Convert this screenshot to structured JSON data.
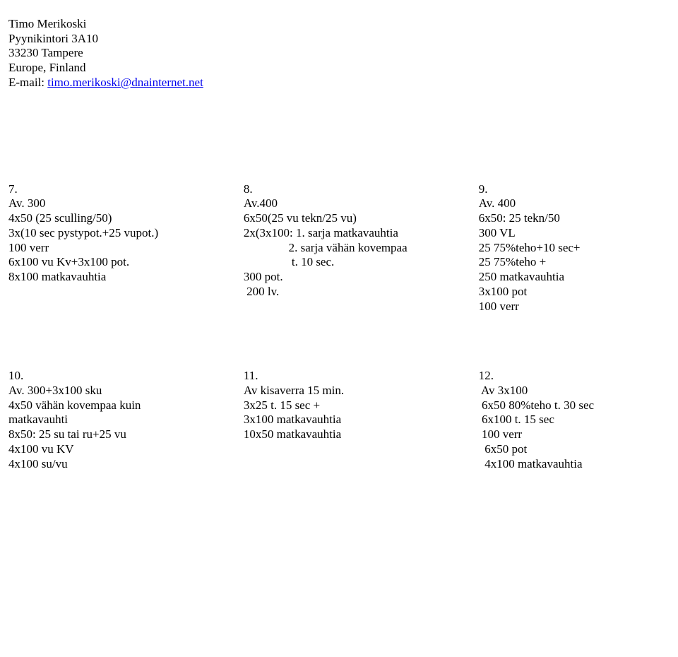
{
  "header": {
    "name": "Timo Merikoski",
    "addr1": "Pyynikintori 3A10",
    "addr2": "33230 Tampere",
    "addr3": "Europe, Finland",
    "email_prefix": "E-mail: ",
    "email": "timo.merikoski@dnainternet.net"
  },
  "row1": {
    "col1": {
      "l1": "7.",
      "l2": "Av. 300",
      "l3": "4x50 (25 sculling/50)",
      "l4": "3x(10 sec pystypot.+25 vupot.)",
      "l5": "100 verr",
      "l6": "6x100 vu Kv+3x100 pot.",
      "l7": "8x100 matkavauhtia"
    },
    "col2": {
      "l1": "8.",
      "l2": "Av.400",
      "l3": "6x50(25 vu tekn/25 vu)",
      "l4": "2x(3x100: 1. sarja matkavauhtia",
      "l5": "               2. sarja vähän kovempaa",
      "l6": "                t. 10 sec.",
      "l7": "300 pot.",
      "l8": " 200 lv."
    },
    "col3": {
      "l1": "9.",
      "l2": "Av. 400",
      "l3": "6x50: 25 tekn/50",
      "l4": "300 VL",
      "l5": "25 75%teho+10 sec+",
      "l6": "25 75%teho +",
      "l7": "250 matkavauhtia",
      "l8": "3x100 pot",
      "l9": "100 verr"
    }
  },
  "row2": {
    "col1": {
      "l1": "10.",
      "l2": "Av. 300+3x100 sku",
      "l3": "4x50 vähän kovempaa kuin",
      "l4": "matkavauhti",
      "l5": "8x50: 25 su tai ru+25 vu",
      "l6": "4x100 vu KV",
      "l7": "4x100 su/vu"
    },
    "col2": {
      "l1": "11.",
      "l2": "Av kisaverra 15 min.",
      "l3": "3x25 t. 15 sec +",
      "l4": "3x100 matkavauhtia",
      "l5": "10x50 matkavauhtia"
    },
    "col3": {
      "l1": "12.",
      "l2": " Av 3x100",
      "l3": " 6x50 80%teho t. 30 sec",
      "l4": " 6x100 t. 15 sec",
      "l5": " 100 verr",
      "l6": "  6x50 pot",
      "l7": "  4x100 matkavauhtia"
    }
  }
}
